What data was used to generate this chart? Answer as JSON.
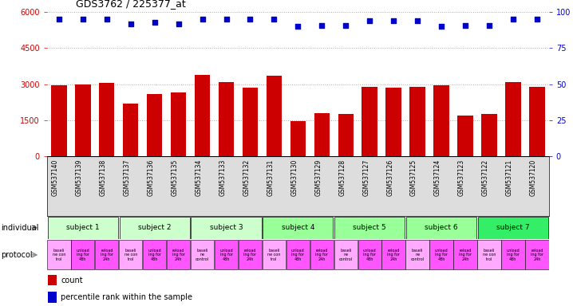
{
  "title": "GDS3762 / 225377_at",
  "samples": [
    "GSM537140",
    "GSM537139",
    "GSM537138",
    "GSM537137",
    "GSM537136",
    "GSM537135",
    "GSM537134",
    "GSM537133",
    "GSM537132",
    "GSM537131",
    "GSM537130",
    "GSM537129",
    "GSM537128",
    "GSM537127",
    "GSM537126",
    "GSM537125",
    "GSM537124",
    "GSM537123",
    "GSM537122",
    "GSM537121",
    "GSM537120"
  ],
  "counts": [
    2950,
    3000,
    3050,
    2200,
    2600,
    2650,
    3400,
    3100,
    2850,
    3350,
    1450,
    1800,
    1750,
    2900,
    2850,
    2900,
    2950,
    1700,
    1750,
    3100,
    2900
  ],
  "percentiles": [
    95,
    95,
    95,
    92,
    93,
    92,
    95,
    95,
    95,
    95,
    90,
    91,
    91,
    94,
    94,
    94,
    90,
    91,
    91,
    95,
    95
  ],
  "ylim_left": [
    0,
    6000
  ],
  "ylim_right": [
    0,
    100
  ],
  "yticks_left": [
    0,
    1500,
    3000,
    4500,
    6000
  ],
  "yticks_right": [
    0,
    25,
    50,
    75,
    100
  ],
  "bar_color": "#cc0000",
  "dot_color": "#0000cc",
  "grid_color": "#aaaaaa",
  "subjects": [
    {
      "label": "subject 1",
      "start": 0,
      "end": 3,
      "color": "#ccffcc"
    },
    {
      "label": "subject 2",
      "start": 3,
      "end": 6,
      "color": "#ccffcc"
    },
    {
      "label": "subject 3",
      "start": 6,
      "end": 9,
      "color": "#ccffcc"
    },
    {
      "label": "subject 4",
      "start": 9,
      "end": 12,
      "color": "#99ff99"
    },
    {
      "label": "subject 5",
      "start": 12,
      "end": 15,
      "color": "#99ff99"
    },
    {
      "label": "subject 6",
      "start": 15,
      "end": 18,
      "color": "#99ff99"
    },
    {
      "label": "subject 7",
      "start": 18,
      "end": 21,
      "color": "#33ee66"
    }
  ],
  "protocol_colors": [
    "#ffaaff",
    "#ff55ff",
    "#ff55ff"
  ],
  "prot_labels": [
    "baseli\nne con\ntrol",
    "unload\ning for\n48h",
    "reload\ning for\n24h",
    "baseli\nne con\ntrol",
    "unload\ning for\n48h",
    "reload\ning for\n24h",
    "baseli\nne\ncontrol",
    "unload\ning for\n48h",
    "reload\ning for\n24h",
    "baseli\nne con\ntrol",
    "unload\ning for\n48h",
    "reload\ning for\n24h",
    "baseli\nne\ncontrol",
    "unload\ning for\n48h",
    "reload\ning for\n24h",
    "baseli\nne\ncontrol",
    "unload\ning for\n48h",
    "reload\ning for\n24h",
    "baseli\nne con\ntrol",
    "unload\ning for\n48h",
    "reload\ning for\n24h"
  ],
  "individual_label": "individual",
  "protocol_label": "protocol",
  "legend_count": "count",
  "legend_pct": "percentile rank within the sample",
  "background_color": "#ffffff",
  "xtick_bg": "#dddddd"
}
